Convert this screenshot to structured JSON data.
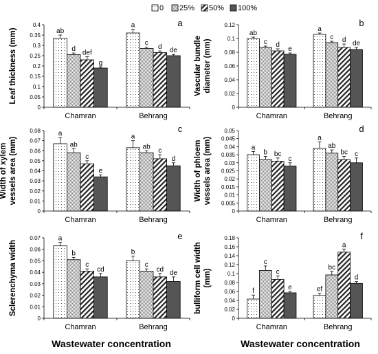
{
  "legend": [
    "0",
    "25%",
    "50%",
    "100%"
  ],
  "xlabel": "Wastewater concentration",
  "chart_data": [
    {
      "type": "bar",
      "panel_letter": "a",
      "ylabel": [
        "Leaf thickness (mm)"
      ],
      "categories": [
        "Chamran",
        "Behrang"
      ],
      "ylim": [
        0,
        0.4
      ],
      "yticks": [
        "0",
        "0.05",
        "0.1",
        "0.15",
        "0.2",
        "0.25",
        "0.3",
        "0.35",
        "0.4"
      ],
      "series": [
        {
          "name": "0",
          "values": [
            0.335,
            0.36
          ],
          "errors": [
            0.015,
            0.018
          ],
          "labels": [
            "ab",
            "a"
          ]
        },
        {
          "name": "25%",
          "values": [
            0.255,
            0.285
          ],
          "errors": [
            0.008,
            0.007
          ],
          "labels": [
            "d",
            "c"
          ]
        },
        {
          "name": "50%",
          "values": [
            0.23,
            0.265
          ],
          "errors": [
            0.015,
            0.008
          ],
          "labels": [
            "def",
            "d"
          ]
        },
        {
          "name": "100%",
          "values": [
            0.19,
            0.25
          ],
          "errors": [
            0.005,
            0.006
          ],
          "labels": [
            "g",
            "de"
          ]
        }
      ]
    },
    {
      "type": "bar",
      "panel_letter": "b",
      "ylabel": [
        "Vascular bundle",
        "diameter (mm)"
      ],
      "categories": [
        "Chamran",
        "Behrang"
      ],
      "ylim": [
        0,
        0.12
      ],
      "yticks": [
        "0",
        "0.02",
        "0.04",
        "0.06",
        "0.08",
        "0.1",
        "0.12"
      ],
      "series": [
        {
          "name": "0",
          "values": [
            0.1,
            0.106
          ],
          "errors": [
            0.002,
            0.002
          ],
          "labels": [
            "ab",
            "a"
          ]
        },
        {
          "name": "25%",
          "values": [
            0.087,
            0.094
          ],
          "errors": [
            0.002,
            0.002
          ],
          "labels": [
            "c",
            "c"
          ]
        },
        {
          "name": "50%",
          "values": [
            0.082,
            0.087
          ],
          "errors": [
            0.003,
            0.005
          ],
          "labels": [
            "d",
            "d"
          ]
        },
        {
          "name": "100%",
          "values": [
            0.077,
            0.084
          ],
          "errors": [
            0.002,
            0.003
          ],
          "labels": [
            "e",
            "de"
          ]
        }
      ]
    },
    {
      "type": "bar",
      "panel_letter": "c",
      "ylabel": [
        "Width of xylem",
        "vessels area (mm)"
      ],
      "categories": [
        "Chamran",
        "Behrang"
      ],
      "ylim": [
        0,
        0.08
      ],
      "yticks": [
        "0",
        "0.01",
        "0.02",
        "0.03",
        "0.04",
        "0.05",
        "0.06",
        "0.07",
        "0.08"
      ],
      "series": [
        {
          "name": "0",
          "values": [
            0.067,
            0.063
          ],
          "errors": [
            0.006,
            0.007
          ],
          "labels": [
            "a",
            "a"
          ]
        },
        {
          "name": "25%",
          "values": [
            0.058,
            0.058
          ],
          "errors": [
            0.004,
            0.002
          ],
          "labels": [
            "ab",
            "ab"
          ]
        },
        {
          "name": "50%",
          "values": [
            0.047,
            0.052
          ],
          "errors": [
            0.003,
            0.004
          ],
          "labels": [
            "c",
            "c"
          ]
        },
        {
          "name": "100%",
          "values": [
            0.034,
            0.045
          ],
          "errors": [
            0.002,
            0.003
          ],
          "labels": [
            "e",
            "d"
          ]
        }
      ]
    },
    {
      "type": "bar",
      "panel_letter": "d",
      "ylabel": [
        "Width of phloem",
        "vessels area (mm)"
      ],
      "categories": [
        "Chamran",
        "Behrang"
      ],
      "ylim": [
        0,
        0.05
      ],
      "yticks": [
        "0",
        "0.005",
        "0.01",
        "0.015",
        "0.02",
        "0.025",
        "0.03",
        "0.035",
        "0.04",
        "0.045",
        "0.05"
      ],
      "series": [
        {
          "name": "0",
          "values": [
            0.035,
            0.039
          ],
          "errors": [
            0.002,
            0.004
          ],
          "labels": [
            "a",
            "a"
          ]
        },
        {
          "name": "25%",
          "values": [
            0.032,
            0.036
          ],
          "errors": [
            0.002,
            0.002
          ],
          "labels": [
            "b",
            "ab"
          ]
        },
        {
          "name": "50%",
          "values": [
            0.031,
            0.032
          ],
          "errors": [
            0.002,
            0.002
          ],
          "labels": [
            "bc",
            "bc"
          ]
        },
        {
          "name": "100%",
          "values": [
            0.028,
            0.03
          ],
          "errors": [
            0.002,
            0.003
          ],
          "labels": [
            "c",
            "c"
          ]
        }
      ]
    },
    {
      "type": "bar",
      "panel_letter": "e",
      "ylabel": [
        "Sclerenchyma width"
      ],
      "categories": [
        "Chamran",
        "Behrang"
      ],
      "ylim": [
        0,
        0.07
      ],
      "yticks": [
        "0",
        "0.01",
        "0.02",
        "0.03",
        "0.04",
        "0.05",
        "0.06",
        "0.07"
      ],
      "series": [
        {
          "name": "0",
          "values": [
            0.063,
            0.05
          ],
          "errors": [
            0.003,
            0.004
          ],
          "labels": [
            "a",
            "b"
          ]
        },
        {
          "name": "25%",
          "values": [
            0.051,
            0.041
          ],
          "errors": [
            0.002,
            0.002
          ],
          "labels": [
            "b",
            "c"
          ]
        },
        {
          "name": "50%",
          "values": [
            0.041,
            0.036
          ],
          "errors": [
            0.002,
            0.003
          ],
          "labels": [
            "c",
            "cd"
          ]
        },
        {
          "name": "100%",
          "values": [
            0.036,
            0.032
          ],
          "errors": [
            0.003,
            0.004
          ],
          "labels": [
            "cd",
            "de"
          ]
        }
      ]
    },
    {
      "type": "bar",
      "panel_letter": "f",
      "ylabel": [
        "bulliform cell width",
        "(mm)"
      ],
      "categories": [
        "Chamran",
        "Behrang"
      ],
      "ylim": [
        0,
        0.18
      ],
      "yticks": [
        "0",
        "0.02",
        "0.04",
        "0.06",
        "0.08",
        "0.1",
        "0.12",
        "0.14",
        "0.16",
        "0.18"
      ],
      "series": [
        {
          "name": "0",
          "values": [
            0.043,
            0.051
          ],
          "errors": [
            0.009,
            0.005
          ],
          "labels": [
            "f",
            "ef"
          ]
        },
        {
          "name": "25%",
          "values": [
            0.107,
            0.097
          ],
          "errors": [
            0.01,
            0.008
          ],
          "labels": [
            "c",
            "bc"
          ]
        },
        {
          "name": "50%",
          "values": [
            0.087,
            0.148
          ],
          "errors": [
            0.008,
            0.007
          ],
          "labels": [
            "c",
            "a"
          ]
        },
        {
          "name": "100%",
          "values": [
            0.057,
            0.078
          ],
          "errors": [
            0.003,
            0.004
          ],
          "labels": [
            "e",
            "d"
          ]
        }
      ]
    }
  ]
}
